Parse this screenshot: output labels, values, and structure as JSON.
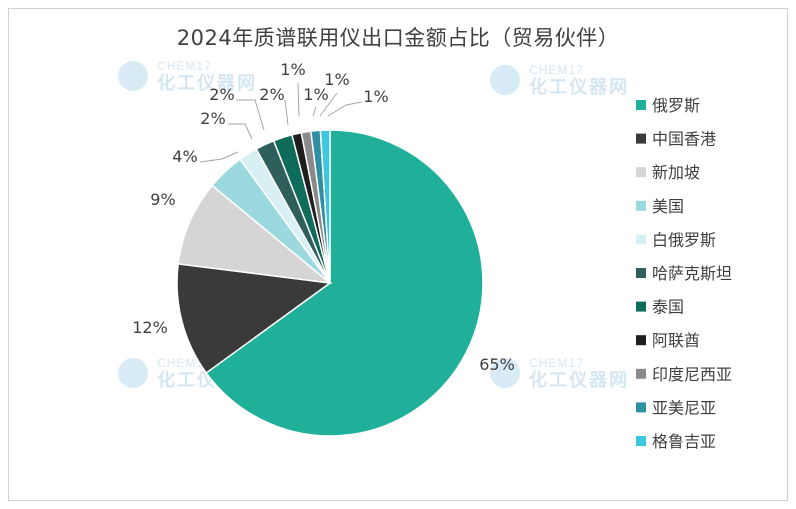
{
  "title": "2024年质谱联用仪出口金额占比（贸易伙伴）",
  "watermark": {
    "brand": "CHEM17",
    "cn": "化工仪器网"
  },
  "chart_data": {
    "type": "pie",
    "title": "2024年质谱联用仪出口金额占比（贸易伙伴）",
    "legend_position": "right",
    "slices": [
      {
        "name": "俄罗斯",
        "value": 65,
        "label": "65%",
        "color": "#20b09a"
      },
      {
        "name": "中国香港",
        "value": 12,
        "label": "12%",
        "color": "#3a3a3a"
      },
      {
        "name": "新加坡",
        "value": 9,
        "label": "9%",
        "color": "#d5d5d5"
      },
      {
        "name": "美国",
        "value": 4,
        "label": "4%",
        "color": "#9bd9de"
      },
      {
        "name": "白俄罗斯",
        "value": 2,
        "label": "2%",
        "color": "#d8f0f3"
      },
      {
        "name": "哈萨克斯坦",
        "value": 2,
        "label": "2%",
        "color": "#2f5f5a"
      },
      {
        "name": "泰国",
        "value": 2,
        "label": "2%",
        "color": "#0f6b5a"
      },
      {
        "name": "阿联酋",
        "value": 1,
        "label": "1%",
        "color": "#1e1e1e"
      },
      {
        "name": "印度尼西亚",
        "value": 1,
        "label": "1%",
        "color": "#8a8a8a"
      },
      {
        "name": "亚美尼亚",
        "value": 1,
        "label": "1%",
        "color": "#2f8fa3"
      },
      {
        "name": "格鲁吉亚",
        "value": 1,
        "label": "1%",
        "color": "#3ec8e0"
      }
    ]
  }
}
